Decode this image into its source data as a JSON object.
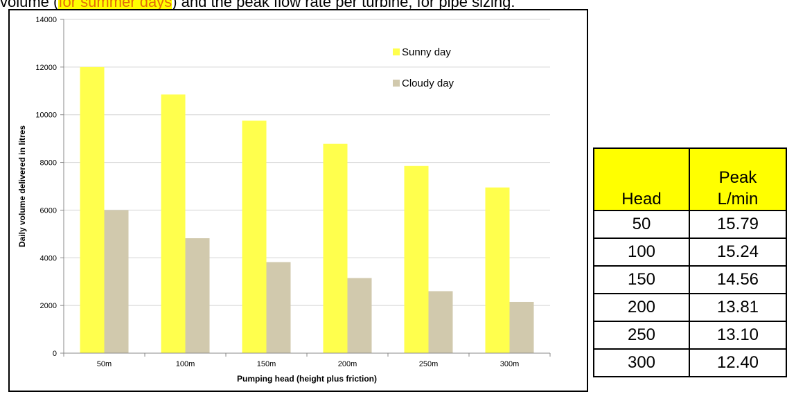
{
  "caption": {
    "prefix": "volume (",
    "highlight": "for summer days",
    "suffix": ") and the peak flow rate per turbine, for pipe sizing."
  },
  "chart_data": {
    "type": "bar",
    "categories": [
      "50m",
      "100m",
      "150m",
      "200m",
      "250m",
      "300m"
    ],
    "series": [
      {
        "name": "Sunny day",
        "color": "#ffff4d",
        "values": [
          12000,
          10850,
          9750,
          8780,
          7850,
          6950
        ]
      },
      {
        "name": "Cloudy day",
        "color": "#d1c9ad",
        "values": [
          6000,
          4820,
          3820,
          3150,
          2600,
          2150
        ]
      }
    ],
    "xlabel": "Pumping head (height plus friction)",
    "ylabel": "Daily volume delivered in litres",
    "ylim": [
      0,
      14000
    ],
    "yticks": [
      "0",
      "2000",
      "4000",
      "6000",
      "8000",
      "10000",
      "12000",
      "14000"
    ],
    "grid": true,
    "legend_position": "top-right"
  },
  "table": {
    "headers": [
      "Head",
      "Peak L/min"
    ],
    "rows": [
      [
        "50",
        "15.79"
      ],
      [
        "100",
        "15.24"
      ],
      [
        "150",
        "14.56"
      ],
      [
        "200",
        "13.81"
      ],
      [
        "250",
        "13.10"
      ],
      [
        "300",
        "12.40"
      ]
    ],
    "header_color": "#ffff00"
  }
}
